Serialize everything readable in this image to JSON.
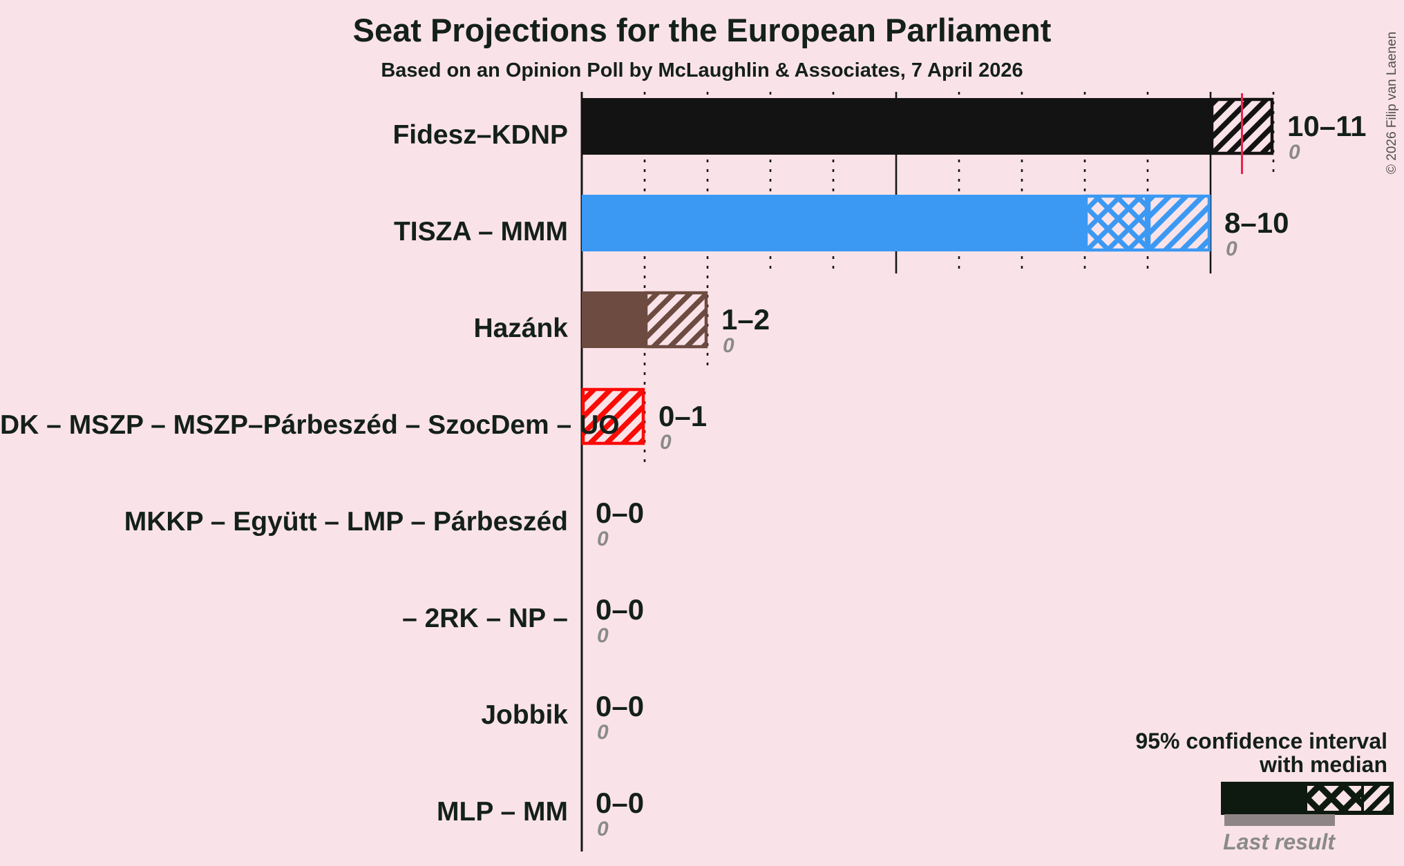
{
  "title": "Seat Projections for the European Parliament",
  "subtitle": "Based on an Opinion Poll by McLaughlin & Associates, 7 April 2026",
  "copyright": "© 2026 Filip van Laenen",
  "legend": {
    "ci_line1": "95% confidence interval",
    "ci_line2": "with median",
    "last_result_label": "Last result"
  },
  "chart_data": {
    "type": "bar",
    "orientation": "horizontal",
    "unit": "seats",
    "x_axis": {
      "min": 0,
      "max": 11,
      "gridline_step": 1,
      "solid_line_step": 5,
      "grid": "dotted"
    },
    "majority_threshold": {
      "value": 10.5,
      "color": "#ec2050"
    },
    "background_color": "#fae3e8",
    "parties": [
      {
        "label": "Fidesz–KDNP",
        "ci_low": 10,
        "median": 10,
        "ci_high": 11,
        "range_label": "10–11",
        "last_result": 0,
        "color": "#131313"
      },
      {
        "label": "TISZA – MMM",
        "ci_low": 8,
        "median": 9,
        "ci_high": 10,
        "range_label": "8–10",
        "last_result": 0,
        "color": "#3b99f4"
      },
      {
        "label": "Hazánk",
        "ci_low": 1,
        "median": 1,
        "ci_high": 2,
        "range_label": "1–2",
        "last_result": 0,
        "color": "#6d4b41"
      },
      {
        "label": "DK – MSZP – MSZP–Párbeszéd – SzocDem – UO",
        "ci_low": 0,
        "median": 0,
        "ci_high": 1,
        "range_label": "0–1",
        "last_result": 0,
        "color": "#fb0b06"
      },
      {
        "label": "MKKP – Együtt – LMP – Párbeszéd",
        "ci_low": 0,
        "median": 0,
        "ci_high": 0,
        "range_label": "0–0",
        "last_result": 0,
        "color": "#14201a"
      },
      {
        "label": "– 2RK – NP –",
        "ci_low": 0,
        "median": 0,
        "ci_high": 0,
        "range_label": "0–0",
        "last_result": 0,
        "color": "#14201a"
      },
      {
        "label": "Jobbik",
        "ci_low": 0,
        "median": 0,
        "ci_high": 0,
        "range_label": "0–0",
        "last_result": 0,
        "color": "#14201a"
      },
      {
        "label": "MLP – MM",
        "ci_low": 0,
        "median": 0,
        "ci_high": 0,
        "range_label": "0–0",
        "last_result": 0,
        "color": "#14201a"
      }
    ],
    "legend_colors": {
      "solid": "#0e1a10",
      "last_result_bar": "#8e8587"
    }
  }
}
